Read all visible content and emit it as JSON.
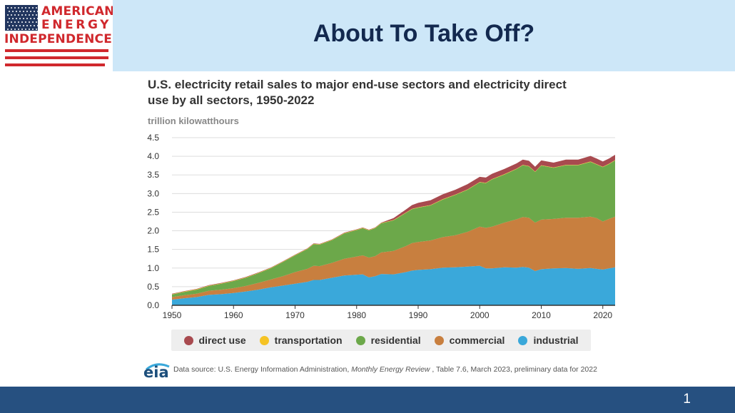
{
  "logo": {
    "line1": "AMERICAN",
    "line2": "ENERGY",
    "line3": "INDEPENDENCE",
    "icon": "us-flag-icon"
  },
  "slide": {
    "title": "About To Take Off?",
    "page_number": "1"
  },
  "chart_title": "U.S. electricity retail sales to major end-use sectors and electricity direct use by all sectors, 1950-2022",
  "chart_unit": "trillion kilowatthours",
  "source": {
    "prefix": "Data source: U.S. Energy Information Administration, ",
    "publication": "Monthly Energy Review",
    "suffix": " , Table 7.6, March 2023, preliminary data for 2022",
    "logo_text": "eia"
  },
  "colors": {
    "industrial": "#3aa8da",
    "commercial": "#c87f3f",
    "residential": "#6ca84a",
    "transportation": "#f5c324",
    "direct_use": "#a84a4f",
    "header_band": "#cde7f8",
    "footer": "#265080"
  },
  "chart_data": {
    "type": "area",
    "stacked": true,
    "x": [
      1950,
      1952,
      1954,
      1956,
      1958,
      1960,
      1962,
      1964,
      1966,
      1968,
      1970,
      1972,
      1973,
      1974,
      1976,
      1978,
      1980,
      1981,
      1982,
      1983,
      1984,
      1986,
      1988,
      1989,
      1990,
      1992,
      1994,
      1996,
      1998,
      2000,
      2001,
      2002,
      2004,
      2006,
      2007,
      2008,
      2009,
      2010,
      2012,
      2014,
      2016,
      2018,
      2019,
      2020,
      2021,
      2022
    ],
    "series": [
      {
        "name": "industrial",
        "color": "#3aa8da",
        "values": [
          0.15,
          0.19,
          0.22,
          0.28,
          0.3,
          0.33,
          0.37,
          0.42,
          0.48,
          0.53,
          0.58,
          0.63,
          0.68,
          0.68,
          0.74,
          0.8,
          0.82,
          0.83,
          0.75,
          0.78,
          0.84,
          0.83,
          0.89,
          0.93,
          0.95,
          0.97,
          1.01,
          1.02,
          1.04,
          1.06,
          0.99,
          0.99,
          1.02,
          1.01,
          1.03,
          1.01,
          0.92,
          0.97,
          0.99,
          1.0,
          0.98,
          1.0,
          0.98,
          0.96,
          0.99,
          1.02
        ]
      },
      {
        "name": "commercial",
        "color": "#c87f3f",
        "values": [
          0.07,
          0.08,
          0.09,
          0.11,
          0.12,
          0.13,
          0.15,
          0.18,
          0.21,
          0.25,
          0.31,
          0.35,
          0.38,
          0.37,
          0.4,
          0.45,
          0.49,
          0.51,
          0.53,
          0.54,
          0.58,
          0.63,
          0.7,
          0.74,
          0.75,
          0.77,
          0.82,
          0.86,
          0.93,
          1.05,
          1.09,
          1.12,
          1.2,
          1.3,
          1.34,
          1.34,
          1.3,
          1.33,
          1.33,
          1.35,
          1.37,
          1.38,
          1.36,
          1.29,
          1.33,
          1.36
        ]
      },
      {
        "name": "residential",
        "color": "#6ca84a",
        "values": [
          0.07,
          0.09,
          0.11,
          0.13,
          0.16,
          0.19,
          0.22,
          0.26,
          0.3,
          0.38,
          0.45,
          0.53,
          0.58,
          0.58,
          0.61,
          0.68,
          0.71,
          0.73,
          0.73,
          0.75,
          0.78,
          0.82,
          0.89,
          0.91,
          0.92,
          0.94,
          1.01,
          1.08,
          1.13,
          1.19,
          1.2,
          1.27,
          1.29,
          1.35,
          1.39,
          1.38,
          1.36,
          1.45,
          1.37,
          1.41,
          1.41,
          1.47,
          1.44,
          1.46,
          1.47,
          1.51
        ]
      },
      {
        "name": "transportation",
        "color": "#f5c324",
        "values": [
          0.01,
          0.01,
          0.01,
          0.01,
          0.01,
          0.01,
          0.01,
          0.01,
          0.01,
          0.01,
          0.01,
          0.01,
          0.01,
          0.01,
          0.01,
          0.01,
          0.01,
          0.01,
          0.01,
          0.01,
          0.01,
          0.01,
          0.01,
          0.01,
          0.01,
          0.01,
          0.01,
          0.01,
          0.01,
          0.01,
          0.01,
          0.01,
          0.01,
          0.01,
          0.01,
          0.01,
          0.01,
          0.01,
          0.01,
          0.01,
          0.01,
          0.01,
          0.01,
          0.01,
          0.01,
          0.01
        ]
      },
      {
        "name": "direct use",
        "color": "#a84a4f",
        "values": [
          0.01,
          0.01,
          0.01,
          0.01,
          0.01,
          0.01,
          0.01,
          0.01,
          0.01,
          0.01,
          0.01,
          0.01,
          0.01,
          0.01,
          0.01,
          0.01,
          0.01,
          0.01,
          0.01,
          0.01,
          0.01,
          0.05,
          0.08,
          0.1,
          0.12,
          0.13,
          0.13,
          0.13,
          0.14,
          0.14,
          0.14,
          0.14,
          0.14,
          0.14,
          0.14,
          0.14,
          0.13,
          0.13,
          0.13,
          0.14,
          0.14,
          0.15,
          0.15,
          0.14,
          0.14,
          0.14
        ]
      }
    ],
    "ylim": [
      0,
      4.5
    ],
    "yticks": [
      "0.0",
      "0.5",
      "1.0",
      "1.5",
      "2.0",
      "2.5",
      "3.0",
      "3.5",
      "4.0",
      "4.5"
    ],
    "xlim": [
      1950,
      2022
    ],
    "xticks": [
      "1950",
      "1960",
      "1970",
      "1980",
      "1990",
      "2000",
      "2010",
      "2020"
    ],
    "grid": true,
    "legend": {
      "placement": "bottom",
      "entries": [
        {
          "label": "direct use",
          "color": "#a84a4f"
        },
        {
          "label": "transportation",
          "color": "#f5c324"
        },
        {
          "label": "residential",
          "color": "#6ca84a"
        },
        {
          "label": "commercial",
          "color": "#c87f3f"
        },
        {
          "label": "industrial",
          "color": "#3aa8da"
        }
      ]
    }
  }
}
